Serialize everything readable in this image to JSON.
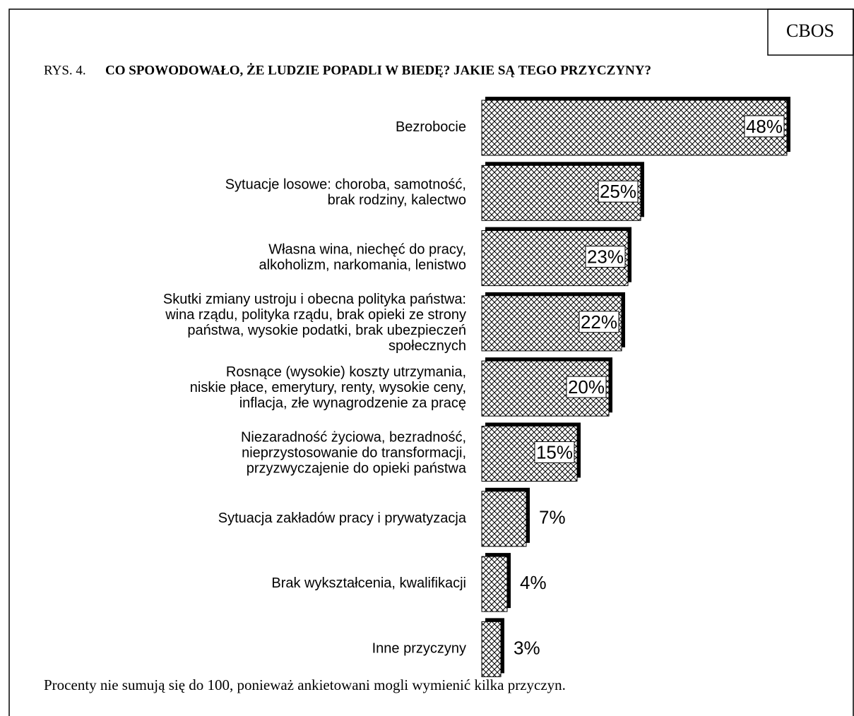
{
  "source": "CBOS",
  "figure_label": "RYS. 4.",
  "note": "Procenty nie sumują się do 100, ponieważ ankietowani mogli wymienić kilka przyczyn.",
  "chart_data": {
    "type": "barh",
    "title": "CO SPOWODOWAŁO, ŻE LUDZIE POPADLI W BIEDĘ? JAKIE SĄ TEGO PRZYCZYNY?",
    "categories": [
      "Bezrobocie",
      "Sytuacje losowe: choroba, samotność,\nbrak rodziny, kalectwo",
      "Własna wina, niechęć do pracy,\nalkoholizm, narkomania, lenistwo",
      "Skutki zmiany ustroju i obecna polityka państwa:\nwina rządu, polityka rządu, brak opieki ze strony\npaństwa, wysokie podatki, brak ubezpieczeń\nspołecznych",
      "Rosnące (wysokie) koszty utrzymania,\nniskie płace, emerytury, renty, wysokie ceny,\ninflacja, złe wynagrodzenie za pracę",
      "Niezaradność życiowa, bezradność,\nnieprzystosowanie do transformacji,\nprzyzwyczajenie do opieki państwa",
      "Sytuacja zakładów pracy i prywatyzacja",
      "Brak wykształcenia, kwalifikacji",
      "Inne przyczyny"
    ],
    "values": [
      48,
      25,
      23,
      22,
      20,
      15,
      7,
      4,
      3
    ],
    "value_labels": [
      "48%",
      "25%",
      "23%",
      "22%",
      "20%",
      "15%",
      "7%",
      "4%",
      "3%"
    ],
    "color": "#000000"
  }
}
